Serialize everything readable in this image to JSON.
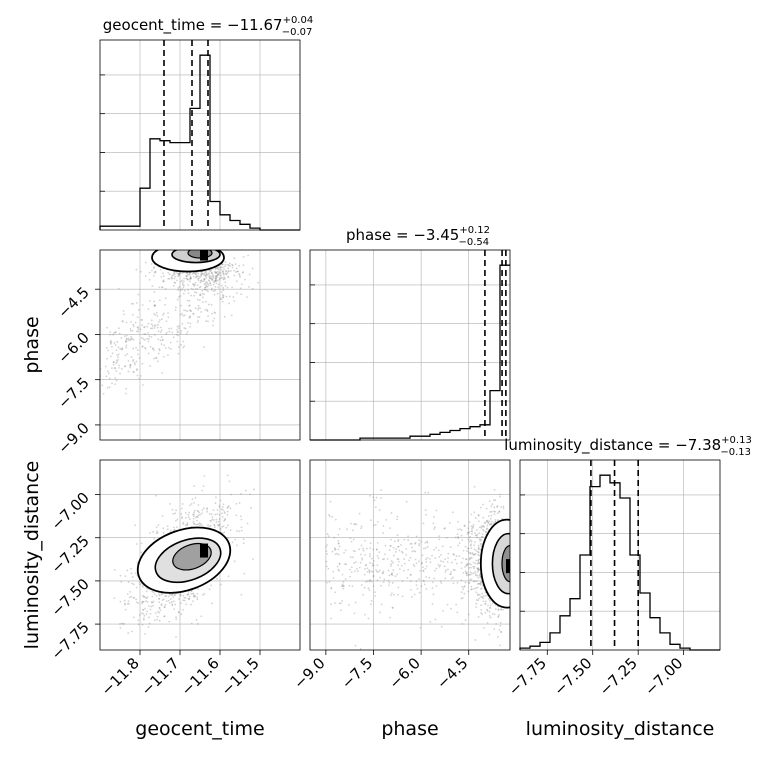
{
  "chart_data": {
    "type": "corner",
    "parameters": [
      {
        "name": "geocent_time",
        "median": -11.67,
        "plus": "+0.04",
        "minus": "−0.07",
        "title_main": "geocent_time = −11.67",
        "quantiles": [
          -11.74,
          -11.67,
          -11.63
        ],
        "axis_range": [
          -11.9,
          -11.4
        ],
        "ticks": [
          -11.8,
          -11.7,
          -11.6,
          -11.5
        ],
        "tick_labels": [
          "−11.8",
          "−11.7",
          "−11.6",
          "−11.5"
        ]
      },
      {
        "name": "phase",
        "median": -3.45,
        "plus": "+0.12",
        "minus": "−0.54",
        "title_main": "phase = −3.45",
        "quantiles": [
          -3.99,
          -3.45,
          -3.33
        ],
        "axis_range": [
          -9.5,
          -3.2
        ],
        "ticks": [
          -9.0,
          -7.5,
          -6.0,
          -4.5
        ],
        "tick_labels": [
          "−9.0",
          "−7.5",
          "−6.0",
          "−4.5"
        ]
      },
      {
        "name": "luminosity_distance",
        "median": -7.38,
        "plus": "+0.13",
        "minus": "−0.13",
        "title_main": "luminosity_distance = −7.38",
        "quantiles": [
          -7.51,
          -7.38,
          -7.25
        ],
        "axis_range": [
          -7.9,
          -6.8
        ],
        "ticks": [
          -7.75,
          -7.5,
          -7.25,
          -7.0
        ],
        "tick_labels": [
          "−7.75",
          "−7.50",
          "−7.25",
          "−7.00"
        ]
      }
    ],
    "histograms": [
      {
        "param": "geocent_time",
        "range": [
          -11.9,
          -11.4
        ],
        "bins": 20,
        "counts": [
          0.02,
          0.02,
          0.02,
          0.02,
          0.22,
          0.48,
          0.47,
          0.46,
          0.46,
          0.64,
          0.92,
          0.15,
          0.08,
          0.05,
          0.03,
          0.01,
          0.0,
          0.0,
          0.0,
          0.0
        ]
      },
      {
        "param": "phase",
        "range": [
          -9.5,
          -3.2
        ],
        "bins": 20,
        "counts": [
          0,
          0,
          0,
          0,
          0,
          0.01,
          0.01,
          0.01,
          0.01,
          0.01,
          0.02,
          0.02,
          0.03,
          0.04,
          0.05,
          0.06,
          0.07,
          0.08,
          0.26,
          0.92
        ]
      },
      {
        "param": "luminosity_distance",
        "range": [
          -7.9,
          -6.8
        ],
        "bins": 20,
        "counts": [
          0.01,
          0.02,
          0.04,
          0.09,
          0.18,
          0.27,
          0.5,
          0.86,
          0.92,
          0.88,
          0.8,
          0.5,
          0.3,
          0.17,
          0.09,
          0.03,
          0.01,
          0.0,
          0.0,
          0.0
        ]
      }
    ],
    "contour_levels": [
      0.5,
      1.0,
      1.5,
      2.0
    ],
    "style": {
      "line_color": "#000000",
      "grid": true,
      "grid_color": "#b0b0b0",
      "scatter_color": "#808080",
      "background": "#ffffff"
    }
  }
}
